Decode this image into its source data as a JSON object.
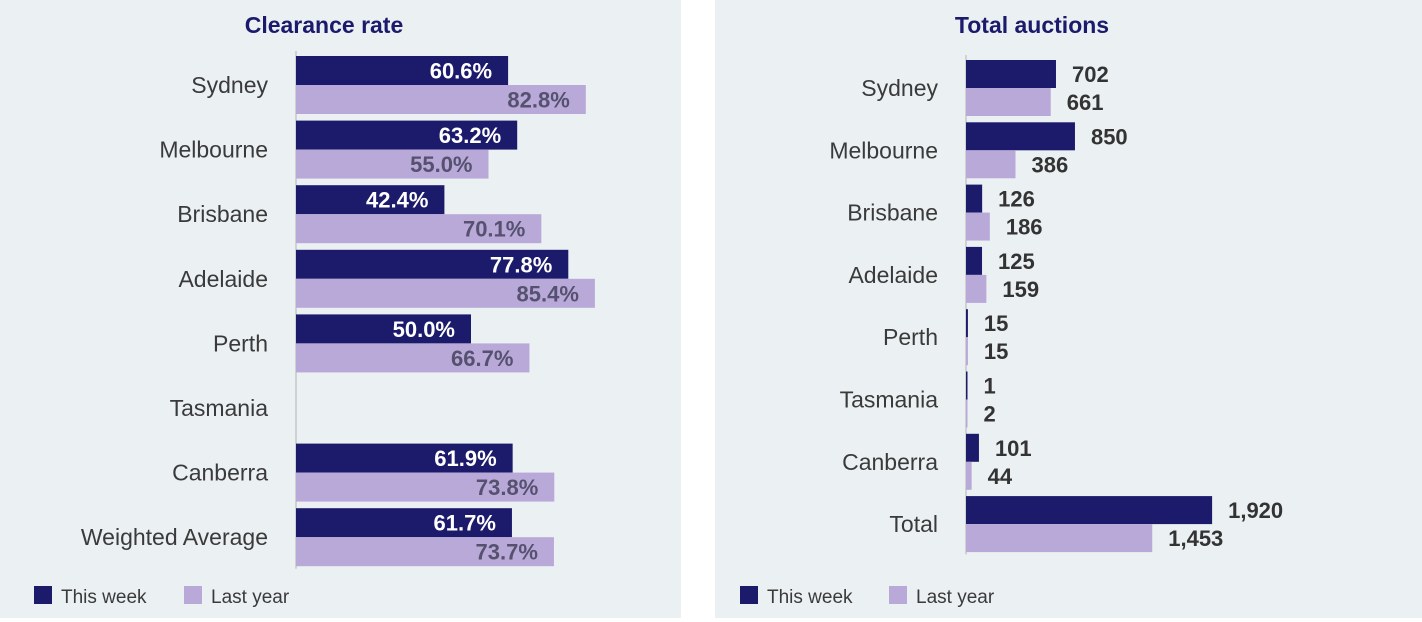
{
  "colors": {
    "this_week": "#1c1a6b",
    "last_year": "#b9a9d9",
    "panel_bg": "#ebf0f3",
    "axis": "#c8c8c8"
  },
  "chart_data": [
    {
      "type": "bar",
      "orientation": "horizontal",
      "title": "Clearance rate",
      "categories": [
        "Sydney",
        "Melbourne",
        "Brisbane",
        "Adelaide",
        "Perth",
        "Tasmania",
        "Canberra",
        "Weighted Average"
      ],
      "series": [
        {
          "name": "This week",
          "values": [
            60.6,
            63.2,
            42.4,
            77.8,
            50.0,
            null,
            61.9,
            61.7
          ],
          "labels": [
            "60.6%",
            "63.2%",
            "42.4%",
            "77.8%",
            "50.0%",
            "",
            "61.9%",
            "61.7%"
          ]
        },
        {
          "name": "Last year",
          "values": [
            82.8,
            55.0,
            70.1,
            85.4,
            66.7,
            null,
            73.8,
            73.7
          ],
          "labels": [
            "82.8%",
            "55.0%",
            "70.1%",
            "85.4%",
            "66.7%",
            "",
            "73.8%",
            "73.7%"
          ]
        }
      ],
      "xlim": [
        0,
        100
      ],
      "grid": false,
      "legend_position": "bottom-left"
    },
    {
      "type": "bar",
      "orientation": "horizontal",
      "title": "Total auctions",
      "categories": [
        "Sydney",
        "Melbourne",
        "Brisbane",
        "Adelaide",
        "Perth",
        "Tasmania",
        "Canberra",
        "Total"
      ],
      "series": [
        {
          "name": "This week",
          "values": [
            702,
            850,
            126,
            125,
            15,
            1,
            101,
            1920
          ],
          "labels": [
            "702",
            "850",
            "126",
            "125",
            "15",
            "1",
            "101",
            "1,920"
          ]
        },
        {
          "name": "Last year",
          "values": [
            661,
            386,
            186,
            159,
            15,
            2,
            44,
            1453
          ],
          "labels": [
            "661",
            "386",
            "186",
            "159",
            "15",
            "2",
            "44",
            "1,453"
          ]
        }
      ],
      "xlim": [
        0,
        2200
      ],
      "grid": false,
      "legend_position": "bottom-left"
    }
  ]
}
